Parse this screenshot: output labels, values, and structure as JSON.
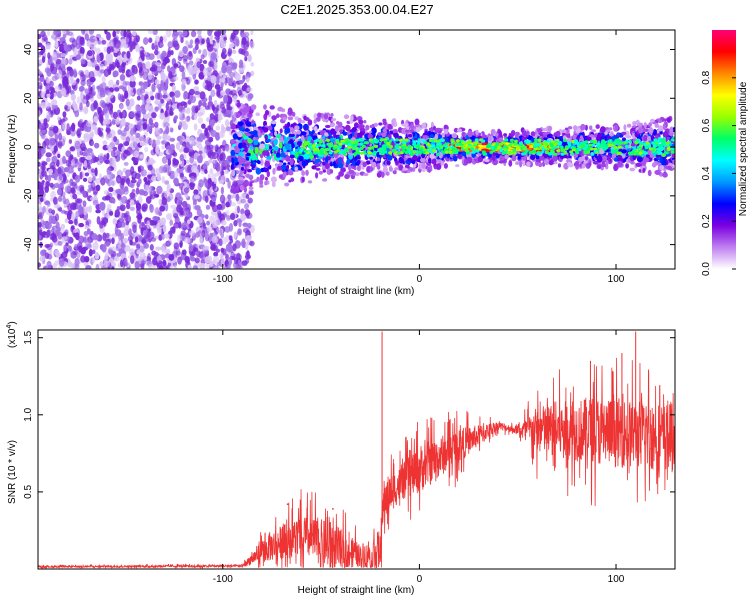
{
  "title": "C2E1.2025.353.00.04.E27",
  "colors": {
    "background": "#ffffff",
    "snr_line": "#ee3333",
    "axis": "#000000",
    "noise_purple": "#7a2bd9",
    "noise_light": "#d9c2f5"
  },
  "chart_data": [
    {
      "type": "heatmap",
      "id": "spectrogram",
      "xlabel": "Height of straight line (km)",
      "ylabel": "Frequency (Hz)",
      "xlim": [
        -194,
        130
      ],
      "ylim": [
        -50,
        48
      ],
      "xticks": [
        -100,
        0,
        100
      ],
      "xtick_labels": [
        "-100",
        "0",
        "100"
      ],
      "yticks": [
        -40,
        -20,
        0,
        20,
        40
      ],
      "ytick_labels": [
        "-40",
        "-20",
        "0",
        "20",
        "40"
      ],
      "grid": false,
      "noise_region_x": [
        -194,
        -85
      ],
      "signal_band_center_hz": 0,
      "signal_band_halfwidth_hz": [
        [
          -95,
          12
        ],
        [
          -60,
          10
        ],
        [
          -30,
          8
        ],
        [
          0,
          7
        ],
        [
          30,
          4
        ],
        [
          60,
          5
        ],
        [
          100,
          6
        ],
        [
          130,
          8
        ]
      ],
      "peak_amplitude_region_x": [
        15,
        70
      ],
      "colorbar": {
        "label": "Normalized spectral amplitude",
        "range": [
          0.0,
          1.0
        ],
        "ticks": [
          0.0,
          0.2,
          0.4,
          0.6,
          0.8
        ],
        "tick_labels": [
          "0.0",
          "0.2",
          "0.4",
          "0.6",
          "0.8"
        ],
        "colormap": [
          "#ffffff",
          "#c080f0",
          "#7a00e0",
          "#0000ff",
          "#0099ff",
          "#00ffff",
          "#00ff66",
          "#99ff00",
          "#ffff00",
          "#ff8800",
          "#ff0000",
          "#ff0077"
        ]
      }
    },
    {
      "type": "line",
      "id": "snr",
      "xlabel": "Height of straight line (km)",
      "ylabel": "SNR (10 * v/v)",
      "y_multiplier_label": "(x10",
      "y_multiplier_exponent": "4",
      "y_multiplier_close": ")",
      "xlim": [
        -194,
        130
      ],
      "ylim": [
        0,
        15500
      ],
      "xticks": [
        -100,
        0,
        100
      ],
      "xtick_labels": [
        "-100",
        "0",
        "100"
      ],
      "yticks": [
        5000,
        10000,
        15000
      ],
      "ytick_labels": [
        "0.5",
        "1.0",
        "1.5"
      ],
      "grid": false,
      "envelope": [
        {
          "x": -194,
          "base": 150,
          "spread": 120
        },
        {
          "x": -90,
          "base": 200,
          "spread": 150
        },
        {
          "x": -85,
          "base": 700,
          "spread": 900
        },
        {
          "x": -75,
          "base": 1500,
          "spread": 2200
        },
        {
          "x": -60,
          "base": 2200,
          "spread": 3000
        },
        {
          "x": -45,
          "base": 1500,
          "spread": 3500
        },
        {
          "x": -30,
          "base": 900,
          "spread": 1600
        },
        {
          "x": -20,
          "base": 1200,
          "spread": 3000
        },
        {
          "x": -18,
          "base": 4500,
          "spread": 3000
        },
        {
          "x": -10,
          "base": 5500,
          "spread": 2500
        },
        {
          "x": 0,
          "base": 6500,
          "spread": 3500
        },
        {
          "x": 20,
          "base": 8000,
          "spread": 2500
        },
        {
          "x": 40,
          "base": 9300,
          "spread": 600
        },
        {
          "x": 50,
          "base": 9000,
          "spread": 500
        },
        {
          "x": 60,
          "base": 9000,
          "spread": 3500
        },
        {
          "x": 90,
          "base": 9000,
          "spread": 5000
        },
        {
          "x": 130,
          "base": 8500,
          "spread": 5000
        }
      ],
      "spikes": [
        {
          "x": -19,
          "y": 15400
        },
        {
          "x": 110,
          "y": 15400
        },
        {
          "x": 103,
          "y": 14000
        },
        {
          "x": 87,
          "y": 13500
        }
      ],
      "markers": [
        {
          "x": -123,
          "y": 280
        },
        {
          "x": -94,
          "y": 220
        },
        {
          "x": -67,
          "y": 4200
        },
        {
          "x": -44,
          "y": 3900
        },
        {
          "x": -26,
          "y": 1100
        },
        {
          "x": 22,
          "y": 8200
        },
        {
          "x": 62,
          "y": 9600
        },
        {
          "x": 118,
          "y": 7800
        }
      ]
    }
  ]
}
